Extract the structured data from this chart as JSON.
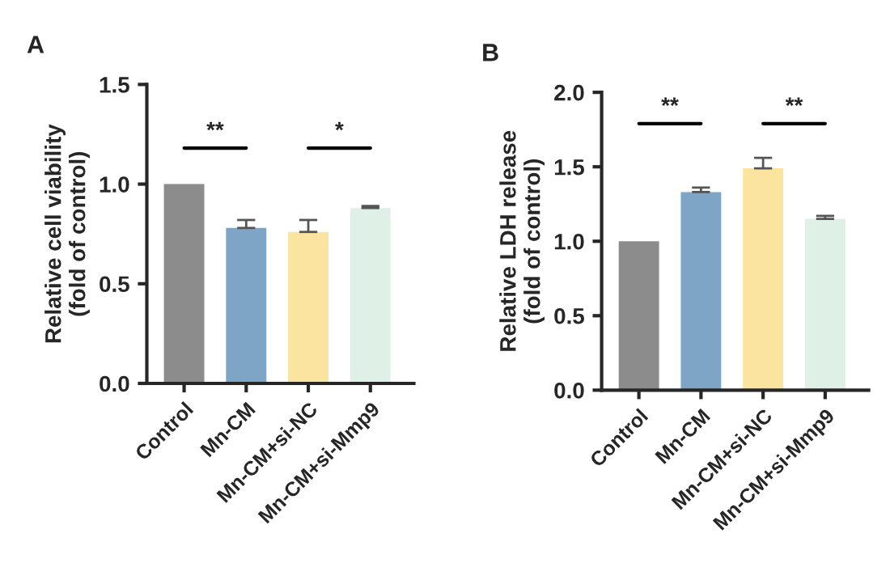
{
  "chart_data": [
    {
      "type": "bar",
      "title": "A",
      "ylabel": "Relative cell viability\n(fold of control)",
      "categories": [
        "Control",
        "Mn-CM",
        "Mn-CM+si-NC",
        "Mn-CM+si-Mmp9"
      ],
      "values": [
        1.0,
        0.78,
        0.76,
        0.88
      ],
      "errors": [
        null,
        [
          0.78,
          0.82
        ],
        [
          0.76,
          0.82
        ],
        [
          0.88,
          0.89
        ]
      ],
      "colors": [
        "#8c8c8c",
        "#7ea5c6",
        "#fbe3a0",
        "#dff0e6"
      ],
      "ylim": [
        0,
        1.5
      ],
      "yticks": [
        {
          "value": 0,
          "label": "0.0"
        },
        {
          "value": 0.5,
          "label": "0.5"
        },
        {
          "value": 1,
          "label": "1.0"
        },
        {
          "value": 1.5,
          "label": "1.5"
        }
      ],
      "annotations": [
        "**",
        "*"
      ],
      "grid": false,
      "legend": false
    },
    {
      "type": "bar",
      "title": "B",
      "ylabel": "Relative LDH release\n(fold of control)",
      "categories": [
        "Control",
        "Mn-CM",
        "Mn-CM+si-NC",
        "Mn-CM+si-Mmp9"
      ],
      "values": [
        1.0,
        1.33,
        1.49,
        1.15
      ],
      "errors": [
        null,
        [
          1.33,
          1.36
        ],
        [
          1.49,
          1.56
        ],
        [
          1.15,
          1.17
        ]
      ],
      "colors": [
        "#8c8c8c",
        "#7ea5c6",
        "#fbe3a0",
        "#dff0e6"
      ],
      "ylim": [
        0,
        2.0
      ],
      "yticks": [
        {
          "value": 0,
          "label": "0.0"
        },
        {
          "value": 0.5,
          "label": "0.5"
        },
        {
          "value": 1,
          "label": "1.0"
        },
        {
          "value": 1.5,
          "label": "1.5"
        },
        {
          "value": 2,
          "label": "2.0"
        }
      ],
      "annotations": [
        "**",
        "**"
      ],
      "grid": false,
      "legend": false
    }
  ]
}
